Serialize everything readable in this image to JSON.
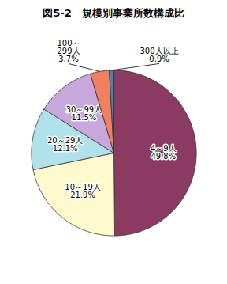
{
  "chart_data": {
    "type": "pie",
    "title": "図5-2　規模別事業所数構成比",
    "categories": [
      "4～9人",
      "10～19人",
      "20～29人",
      "30～99人",
      "100～\n299人",
      "300人以上"
    ],
    "values": [
      49.8,
      21.9,
      12.1,
      11.5,
      3.7,
      0.9
    ],
    "value_labels": [
      "49.8%",
      "21.9%",
      "12.1%",
      "11.5%",
      "3.7%",
      "0.9%"
    ],
    "colors": [
      "#8B3A62",
      "#FFFACD",
      "#B0E2EC",
      "#C8A8DC",
      "#F08060",
      "#4682B4"
    ],
    "data_labels": true
  }
}
